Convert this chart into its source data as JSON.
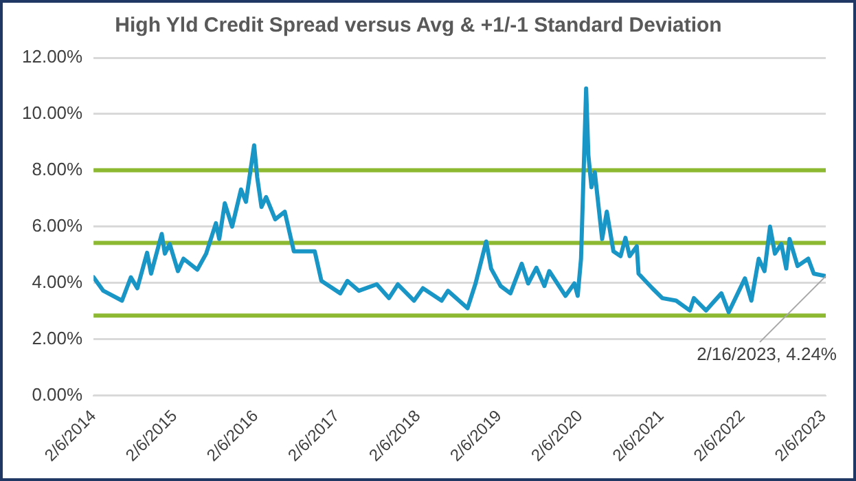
{
  "chart_data": {
    "type": "line",
    "title": "High Yld Credit Spread versus Avg & +1/-1 Standard Deviation",
    "x": [
      "2014-02-06",
      "2014-03-22",
      "2014-06-14",
      "2014-07-24",
      "2014-08-22",
      "2014-10-05",
      "2014-10-23",
      "2014-12-10",
      "2014-12-24",
      "2015-01-15",
      "2015-02-21",
      "2015-03-18",
      "2015-05-19",
      "2015-06-28",
      "2015-08-11",
      "2015-08-26",
      "2015-09-20",
      "2015-10-23",
      "2015-12-02",
      "2015-12-24",
      "2016-01-30",
      "2016-02-13",
      "2016-03-03",
      "2016-03-24",
      "2016-05-04",
      "2016-06-16",
      "2016-07-27",
      "2016-10-29",
      "2016-11-28",
      "2017-02-21",
      "2017-03-25",
      "2017-05-16",
      "2017-08-04",
      "2017-09-28",
      "2017-11-07",
      "2018-01-19",
      "2018-02-28",
      "2018-05-23",
      "2018-06-21",
      "2018-09-17",
      "2018-10-23",
      "2018-12-10",
      "2019-01-01",
      "2019-02-13",
      "2019-03-29",
      "2019-05-19",
      "2019-06-17",
      "2019-07-24",
      "2019-08-29",
      "2019-09-20",
      "2019-12-02",
      "2020-01-11",
      "2020-01-26",
      "2020-02-10",
      "2020-03-04",
      "2020-03-14",
      "2020-03-28",
      "2020-04-12",
      "2020-05-15",
      "2020-06-05",
      "2020-07-05",
      "2020-08-06",
      "2020-08-28",
      "2020-09-16",
      "2020-10-18",
      "2020-10-26",
      "2020-12-27",
      "2021-02-10",
      "2021-04-13",
      "2021-06-14",
      "2021-07-02",
      "2021-08-26",
      "2021-09-24",
      "2021-11-03",
      "2021-12-06",
      "2022-02-17",
      "2022-03-18",
      "2022-04-20",
      "2022-05-16",
      "2022-06-10",
      "2022-07-02",
      "2022-07-31",
      "2022-08-22",
      "2022-09-06",
      "2022-10-12",
      "2022-11-29",
      "2022-12-24",
      "2023-02-16"
    ],
    "series": [
      {
        "color": "#1a96c6",
        "values": [
          4.2,
          3.72,
          3.37,
          4.2,
          3.81,
          5.07,
          4.33,
          5.74,
          5.04,
          5.38,
          4.42,
          4.86,
          4.47,
          5.04,
          6.12,
          5.56,
          6.83,
          6.0,
          7.32,
          6.88,
          8.89,
          7.75,
          6.7,
          7.05,
          6.26,
          6.53,
          5.12,
          5.12,
          4.07,
          3.63,
          4.07,
          3.72,
          3.95,
          3.46,
          3.95,
          3.37,
          3.81,
          3.37,
          3.72,
          3.1,
          3.98,
          5.47,
          4.51,
          3.89,
          3.63,
          4.68,
          3.98,
          4.54,
          3.89,
          4.42,
          3.54,
          3.98,
          3.54,
          4.86,
          10.91,
          8.54,
          7.4,
          7.93,
          5.56,
          6.53,
          5.12,
          4.95,
          5.6,
          4.95,
          5.3,
          4.33,
          3.81,
          3.46,
          3.37,
          3.02,
          3.46,
          3.02,
          3.28,
          3.63,
          2.96,
          4.16,
          3.37,
          4.86,
          4.42,
          6.0,
          5.04,
          5.38,
          4.51,
          5.56,
          4.6,
          4.86,
          4.33,
          4.24
        ]
      }
    ],
    "xlim": [
      "2014-02-06",
      "2023-02-16"
    ],
    "xticks": [
      {
        "value": "2014-02-06",
        "label": "2/6/2014"
      },
      {
        "value": "2015-02-06",
        "label": "2/6/2015"
      },
      {
        "value": "2016-02-06",
        "label": "2/6/2016"
      },
      {
        "value": "2017-02-06",
        "label": "2/6/2017"
      },
      {
        "value": "2018-02-06",
        "label": "2/6/2018"
      },
      {
        "value": "2019-02-06",
        "label": "2/6/2019"
      },
      {
        "value": "2020-02-06",
        "label": "2/6/2020"
      },
      {
        "value": "2021-02-06",
        "label": "2/6/2021"
      },
      {
        "value": "2022-02-06",
        "label": "2/6/2022"
      },
      {
        "value": "2023-02-06",
        "label": "2/6/2023"
      }
    ],
    "ylim": [
      0,
      12
    ],
    "yticks": [
      {
        "value": 0,
        "label": "0.00%"
      },
      {
        "value": 2,
        "label": "2.00%"
      },
      {
        "value": 4,
        "label": "4.00%"
      },
      {
        "value": 6,
        "label": "6.00%"
      },
      {
        "value": 8,
        "label": "8.00%"
      },
      {
        "value": 10,
        "label": "10.00%"
      },
      {
        "value": 12,
        "label": "12.00%"
      }
    ],
    "ref_lines": [
      {
        "axis": "y",
        "value": 8.0,
        "color": "#8cb832"
      },
      {
        "axis": "y",
        "value": 5.42,
        "color": "#8cb832"
      },
      {
        "axis": "y",
        "value": 2.84,
        "color": "#8cb832"
      }
    ],
    "annotations": [
      {
        "text": "2/16/2023, 4.24%",
        "x": "2023-02-16",
        "y": 4.24
      }
    ],
    "grid": "y",
    "legend": false,
    "marker": "none",
    "line_style": "solid"
  }
}
